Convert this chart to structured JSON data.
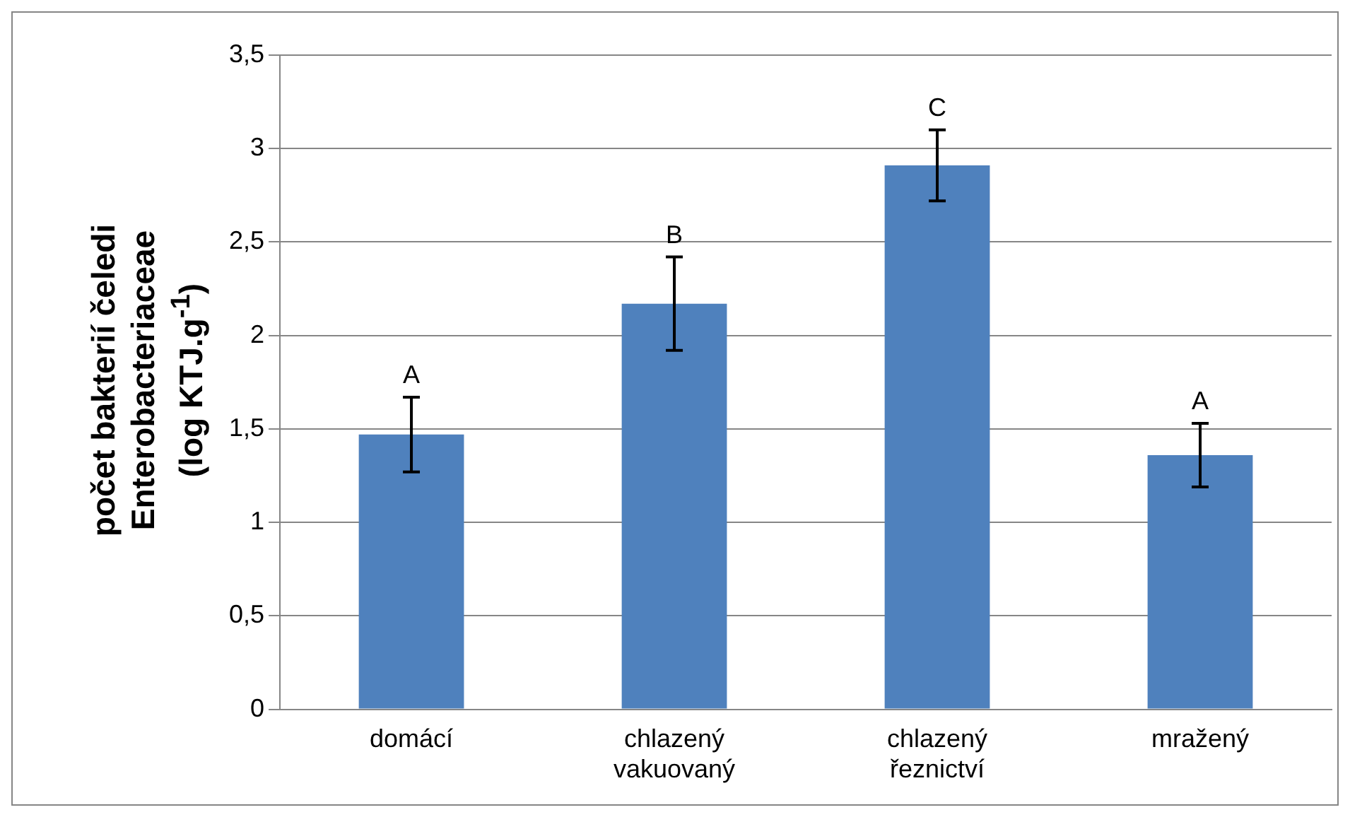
{
  "chart_data": {
    "type": "bar",
    "ylabel": "počet bakterií čeledi\nEnterobacteriaceae\n(log KTJ.g$^{-1}$)",
    "categories": [
      "domácí",
      "chlazený\nvakuovaný",
      "chlazený\nřeznictví",
      "mražený"
    ],
    "values": [
      1.47,
      2.17,
      2.91,
      1.36
    ],
    "color": "#4f81bd",
    "errors": [
      0.2,
      0.25,
      0.19,
      0.17
    ],
    "ylim": [
      0,
      3.5
    ],
    "yticks": [
      {
        "value": 0,
        "label": "0"
      },
      {
        "value": 0.5,
        "label": "0,5"
      },
      {
        "value": 1,
        "label": "1"
      },
      {
        "value": 1.5,
        "label": "1,5"
      },
      {
        "value": 2,
        "label": "2"
      },
      {
        "value": 2.5,
        "label": "2,5"
      },
      {
        "value": 3,
        "label": "3"
      },
      {
        "value": 3.5,
        "label": "3,5"
      }
    ],
    "grid": "y",
    "legend": false,
    "annotations": [
      "A",
      "B",
      "C",
      "A"
    ]
  }
}
